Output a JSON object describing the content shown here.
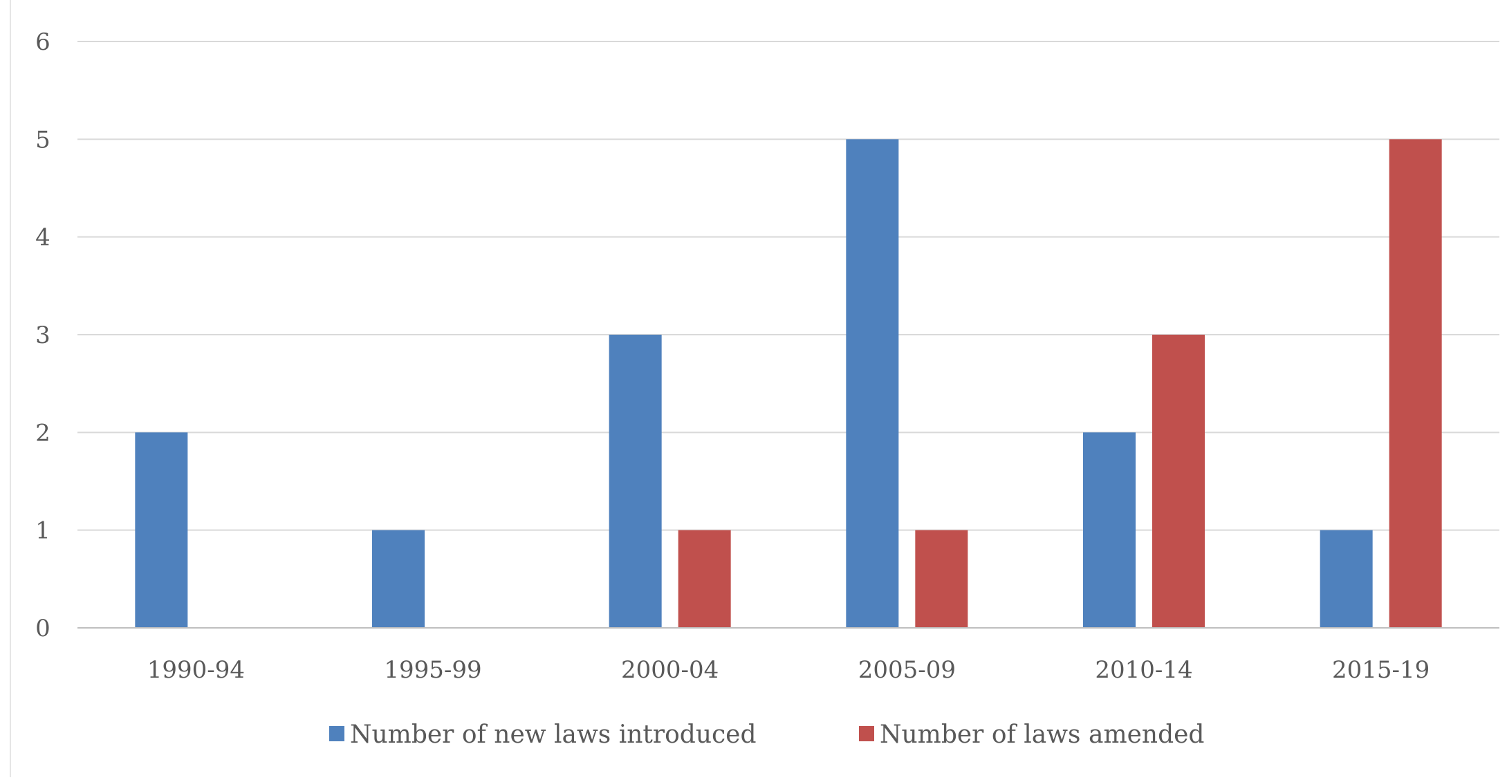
{
  "chart_data": {
    "type": "bar",
    "title": "",
    "xlabel": "",
    "ylabel": "",
    "categories": [
      "1990-94",
      "1995-99",
      "2000-04",
      "2005-09",
      "2010-14",
      "2015-19"
    ],
    "series": [
      {
        "name": "Number of new laws introduced",
        "color": "#4f81bd",
        "values": [
          2,
          1,
          3,
          5,
          2,
          1
        ]
      },
      {
        "name": "Number of laws amended",
        "color": "#c0504d",
        "values": [
          0,
          0,
          1,
          1,
          3,
          5
        ]
      }
    ],
    "ylim": [
      0,
      6
    ],
    "yticks": [
      "0",
      "1",
      "2",
      "3",
      "4",
      "5",
      "6"
    ],
    "grid": true,
    "legend_position": "bottom",
    "gridline_color": "#d9d9d9",
    "axis_line_color": "#bfbfbf"
  }
}
